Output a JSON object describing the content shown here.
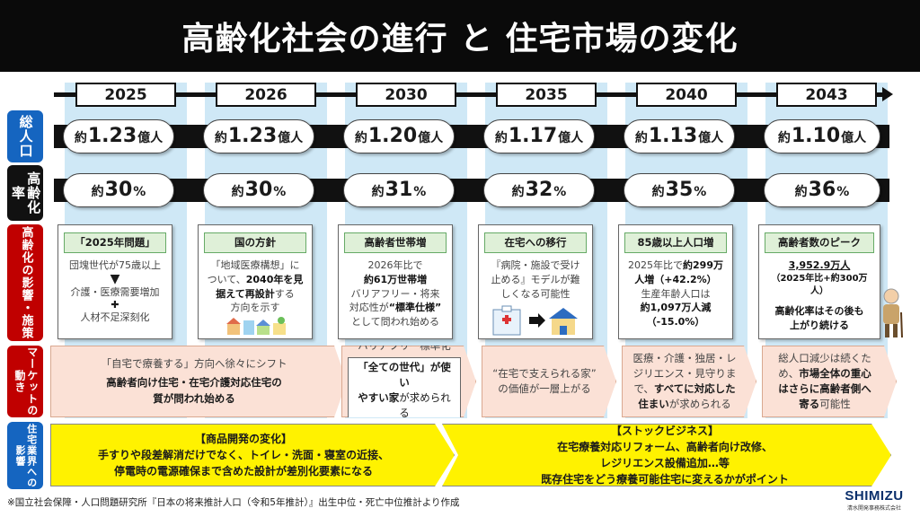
{
  "title": "高齢化社会の進行 と 住宅市場の変化",
  "colors": {
    "title_bg": "#0a0a0a",
    "row_blue": "#1565c0",
    "row_dark": "#111111",
    "row_red": "#c00000",
    "stripe": "#cfe8f6",
    "market": "#fbe1d6",
    "industry": "#fff200"
  },
  "row_labels": {
    "population": "総人口",
    "aging_rate": "高齢化率",
    "impact": "高齢化の影響・施策",
    "market": "マーケットの動き",
    "industry": "住宅業界への影響"
  },
  "years": [
    "2025",
    "2026",
    "2030",
    "2035",
    "2040",
    "2043"
  ],
  "population": [
    {
      "prefix": "約",
      "value": "1.23",
      "unit": "億人"
    },
    {
      "prefix": "約",
      "value": "1.23",
      "unit": "億人"
    },
    {
      "prefix": "約",
      "value": "1.20",
      "unit": "億人"
    },
    {
      "prefix": "約",
      "value": "1.17",
      "unit": "億人"
    },
    {
      "prefix": "約",
      "value": "1.13",
      "unit": "億人"
    },
    {
      "prefix": "約",
      "value": "1.10",
      "unit": "億人"
    }
  ],
  "aging_rate": [
    {
      "prefix": "約",
      "value": "30",
      "unit": "%"
    },
    {
      "prefix": "約",
      "value": "30",
      "unit": "%"
    },
    {
      "prefix": "約",
      "value": "31",
      "unit": "%"
    },
    {
      "prefix": "約",
      "value": "32",
      "unit": "%"
    },
    {
      "prefix": "約",
      "value": "35",
      "unit": "%"
    },
    {
      "prefix": "約",
      "value": "36",
      "unit": "%"
    }
  ],
  "impacts": {
    "c1": {
      "head": "「2025年問題」",
      "l1": "団塊世代が75歳以上",
      "l2": "介護・医療需要増加",
      "plus": "✚",
      "l3": "人材不足深刻化"
    },
    "c2": {
      "head": "国の方針",
      "l1": "「地域医療構想」に",
      "l2a": "ついて、",
      "l2b": "2040年を見",
      "l3": "据えて再設計",
      "l3b": "する",
      "l4": "方向を示す"
    },
    "c3": {
      "head": "高齢者世帯増",
      "l1": "2026年比で",
      "l2": "約61万世帯増",
      "l3": "バリアフリー・将来",
      "l4a": "対応性が",
      "l4b": "“標準仕様”",
      "l5": "として問われ始める"
    },
    "c4": {
      "head": "在宅への移行",
      "l1": "『病院・施設で受け",
      "l2": "止める』モデルが難",
      "l3": "しくなる可能性"
    },
    "c5": {
      "head": "85歳以上人口増",
      "l1a": "2025年比で",
      "l1b": "約299万",
      "l2": "人増（+42.2%）",
      "l3": "生産年齢人口は",
      "l4": "約1,097万人減",
      "l5": "（-15.0%）"
    },
    "c6": {
      "head": "高齢者数のピーク",
      "l1": "3,952.9万人",
      "l2": "（2025年比+約300万人）",
      "l3": "高齢化率はその後も",
      "l4": "上がり続ける"
    }
  },
  "market": {
    "m1": {
      "lite": "「自宅で療養する」方向へ徐々にシフト",
      "l1": "高齢者向け住宅・在宅介護対応住宅の",
      "l2": "質が問われ始める"
    },
    "m2": {
      "lite": "バリアフリー標準化",
      "l1": "「全ての世代」が使い",
      "l2a": "やすい家",
      "l2b": "が求められる"
    },
    "m3": {
      "l1": "“在宅で支えられる家”",
      "l2": "の価値が一層上がる"
    },
    "m4": {
      "l1": "医療・介護・独居・レ",
      "l2": "ジリエンス・見守りま",
      "l3a": "で、",
      "l3b": "すべてに対応した",
      "l4a": "住まい",
      "l4b": "が求められる"
    },
    "m5": {
      "l1": "総人口減少は続くた",
      "l2a": "め、",
      "l2b": "市場全体の重心",
      "l3": "はさらに高齢者側へ",
      "l4a": "寄る",
      "l4b": "可能性"
    }
  },
  "industry": {
    "y1": {
      "head": "【商品開発の変化】",
      "l1": "手すりや段差解消だけでなく、トイレ・洗面・寝室の近接、",
      "l2": "停電時の電源確保まで含めた設計が差別化要素になる"
    },
    "y2": {
      "head": "【ストックビジネス】",
      "l1": "在宅療養対応リフォーム、高齢者向け改修、",
      "l2": "レジリエンス設備追加…等",
      "l3": "既存住宅をどう療養可能住宅に変えるかがポイント"
    }
  },
  "footer": "※国立社会保障・人口問題研究所『日本の将来推計人口（令和5年推計）』出生中位・死亡中位推計より作成",
  "logo": {
    "name": "SHIMIZU",
    "sub": "清水開発事務株式会社"
  }
}
